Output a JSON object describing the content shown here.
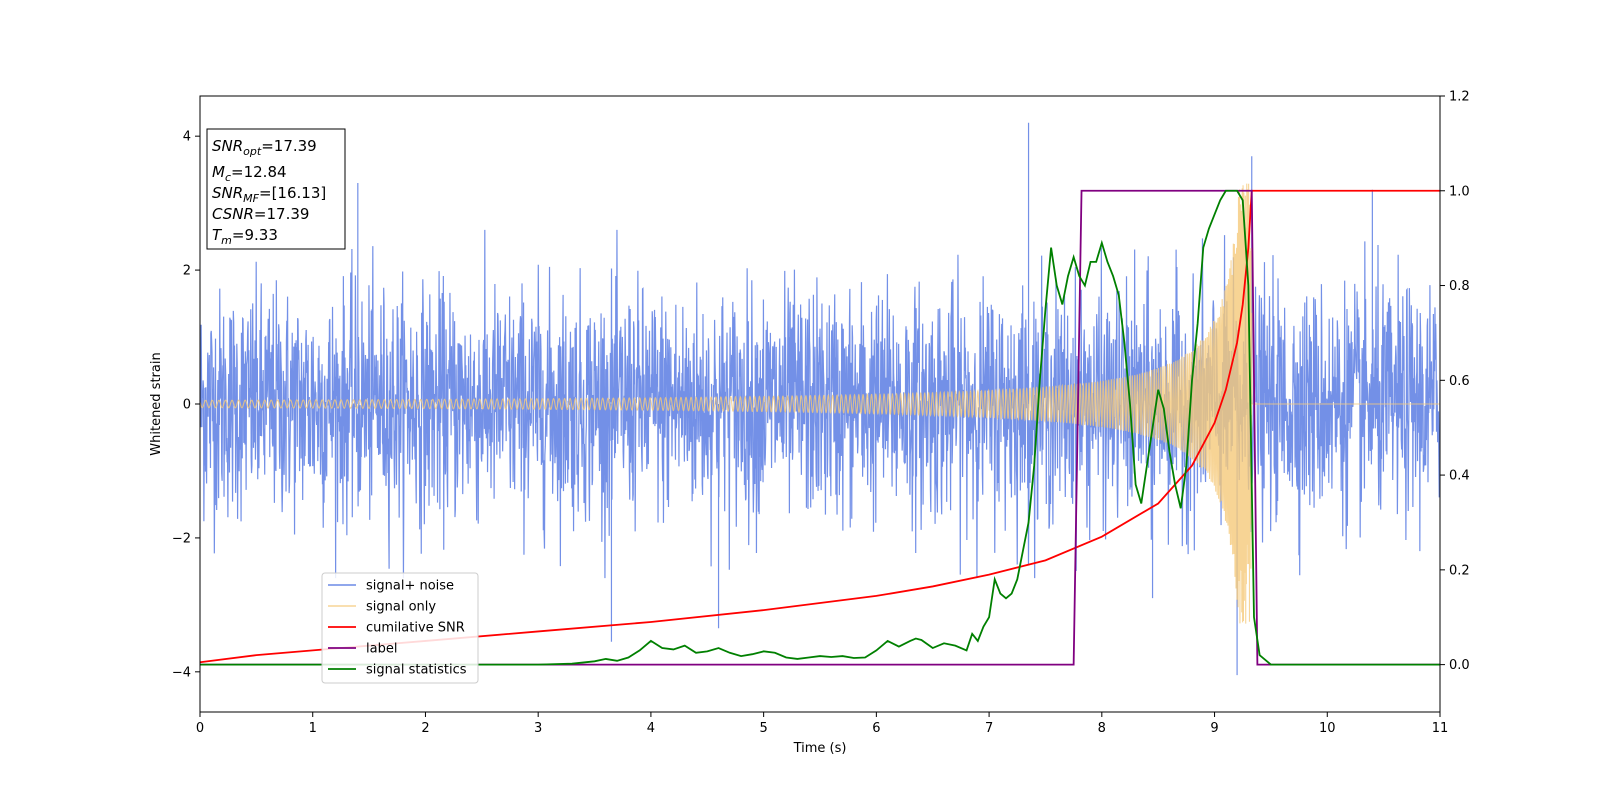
{
  "chart_data": {
    "type": "line",
    "xlabel": "Time (s)",
    "ylabel": "Whitened strain",
    "xlim": [
      0,
      11
    ],
    "ylim": [
      -4.6,
      4.6
    ],
    "y2lim": [
      -0.1,
      1.2
    ],
    "x_ticks": [
      "0",
      "1",
      "2",
      "3",
      "4",
      "5",
      "6",
      "7",
      "8",
      "9",
      "10",
      "11"
    ],
    "y_ticks": [
      "−4",
      "−2",
      "0",
      "2",
      "4"
    ],
    "y2_ticks": [
      "0.0",
      "0.2",
      "0.4",
      "0.6",
      "0.8",
      "1.0",
      "1.2"
    ],
    "legend_position": "lower-left",
    "info_box": [
      {
        "main": "SNR",
        "sub": "opt",
        "rest": "=17.39"
      },
      {
        "main": "M",
        "sub": "c",
        "rest": "=12.84"
      },
      {
        "main": "SNR",
        "sub": "MF",
        "rest": "=[16.13]"
      },
      {
        "main": "CSNR",
        "sub": "",
        "rest": "=17.39"
      },
      {
        "main": "T",
        "sub": "m",
        "rest": "=9.33"
      }
    ],
    "series": [
      {
        "name": "signal+ noise",
        "color": "#6b8ae6",
        "axis": "left",
        "kind": "noise",
        "noise_amplitude": 2.6,
        "spikes": [
          [
            1.4,
            3.3
          ],
          [
            3.65,
            -3.55
          ],
          [
            4.6,
            -3.35
          ],
          [
            7.35,
            4.2
          ],
          [
            9.2,
            -4.05
          ],
          [
            9.33,
            3.7
          ],
          [
            8.45,
            -2.9
          ],
          [
            10.4,
            3.2
          ]
        ]
      },
      {
        "name": "signal only",
        "color": "#f5c97a",
        "axis": "left",
        "kind": "chirp",
        "merger_time": 9.33,
        "peak_amplitude": 3.3
      },
      {
        "name": "cumilative SNR",
        "color": "#ff0000",
        "axis": "right",
        "x": [
          0,
          0.5,
          1,
          2,
          3,
          4,
          5,
          6,
          6.5,
          7,
          7.5,
          8,
          8.5,
          8.8,
          9.0,
          9.1,
          9.2,
          9.25,
          9.3,
          9.33,
          9.35,
          10,
          11
        ],
        "y": [
          0.005,
          0.02,
          0.03,
          0.05,
          0.07,
          0.09,
          0.115,
          0.145,
          0.165,
          0.19,
          0.22,
          0.27,
          0.34,
          0.42,
          0.51,
          0.58,
          0.68,
          0.76,
          0.88,
          1.0,
          1.0,
          1.0,
          1.0
        ]
      },
      {
        "name": "label",
        "color": "#800080",
        "axis": "right",
        "x": [
          0,
          7.75,
          7.82,
          9.33,
          9.38,
          11
        ],
        "y": [
          0,
          0,
          1,
          1,
          0,
          0
        ]
      },
      {
        "name": "signal statistics",
        "color": "#008000",
        "axis": "right",
        "x": [
          0,
          1,
          2,
          3,
          3.3,
          3.5,
          3.6,
          3.7,
          3.8,
          3.9,
          4.0,
          4.1,
          4.2,
          4.3,
          4.4,
          4.5,
          4.6,
          4.7,
          4.8,
          4.9,
          5.0,
          5.1,
          5.2,
          5.3,
          5.4,
          5.5,
          5.6,
          5.7,
          5.8,
          5.9,
          6.0,
          6.1,
          6.2,
          6.3,
          6.35,
          6.4,
          6.5,
          6.6,
          6.7,
          6.8,
          6.85,
          6.9,
          6.95,
          7.0,
          7.05,
          7.1,
          7.15,
          7.2,
          7.25,
          7.3,
          7.35,
          7.4,
          7.45,
          7.5,
          7.55,
          7.6,
          7.65,
          7.7,
          7.75,
          7.8,
          7.85,
          7.9,
          7.95,
          8.0,
          8.05,
          8.1,
          8.15,
          8.2,
          8.25,
          8.3,
          8.35,
          8.4,
          8.45,
          8.5,
          8.55,
          8.6,
          8.65,
          8.7,
          8.75,
          8.8,
          8.85,
          8.9,
          8.95,
          9.0,
          9.05,
          9.1,
          9.15,
          9.2,
          9.25,
          9.3,
          9.35,
          9.4,
          9.5,
          10,
          11
        ],
        "y": [
          0.0,
          0.0,
          0.0,
          0.0,
          0.002,
          0.007,
          0.012,
          0.008,
          0.015,
          0.03,
          0.05,
          0.035,
          0.032,
          0.04,
          0.025,
          0.028,
          0.035,
          0.025,
          0.018,
          0.022,
          0.028,
          0.025,
          0.015,
          0.012,
          0.015,
          0.018,
          0.016,
          0.018,
          0.014,
          0.015,
          0.03,
          0.05,
          0.038,
          0.05,
          0.055,
          0.052,
          0.035,
          0.045,
          0.04,
          0.03,
          0.065,
          0.05,
          0.08,
          0.1,
          0.18,
          0.15,
          0.14,
          0.15,
          0.18,
          0.24,
          0.3,
          0.42,
          0.6,
          0.75,
          0.88,
          0.8,
          0.76,
          0.82,
          0.86,
          0.82,
          0.8,
          0.85,
          0.85,
          0.89,
          0.85,
          0.82,
          0.78,
          0.68,
          0.55,
          0.38,
          0.34,
          0.42,
          0.5,
          0.58,
          0.54,
          0.45,
          0.38,
          0.33,
          0.42,
          0.6,
          0.72,
          0.88,
          0.92,
          0.95,
          0.98,
          1.0,
          1.0,
          1.0,
          0.98,
          0.8,
          0.1,
          0.02,
          0.0,
          0.0,
          0.0
        ]
      }
    ]
  }
}
